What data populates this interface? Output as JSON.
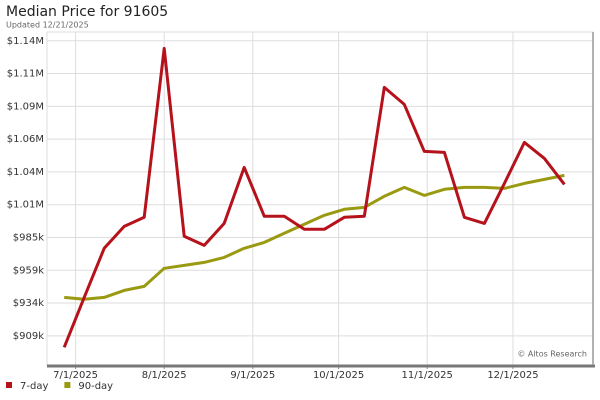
{
  "chart_data": {
    "type": "line",
    "title": "Median Price for 91605",
    "subtitle": "Updated 12/21/2025",
    "watermark": "© Altos Research",
    "x": [
      "2025-06-27",
      "2025-07-04",
      "2025-07-11",
      "2025-07-18",
      "2025-07-25",
      "2025-08-01",
      "2025-08-08",
      "2025-08-15",
      "2025-08-22",
      "2025-08-29",
      "2025-09-05",
      "2025-09-12",
      "2025-09-19",
      "2025-09-26",
      "2025-10-03",
      "2025-10-10",
      "2025-10-17",
      "2025-10-24",
      "2025-10-31",
      "2025-11-07",
      "2025-11-14",
      "2025-11-21",
      "2025-11-28",
      "2025-12-05",
      "2025-12-12",
      "2025-12-19"
    ],
    "series": [
      {
        "name": "7-day",
        "color": "#b5121b",
        "values": [
          899700,
          938400,
          976400,
          993400,
          1000400,
          1131300,
          985700,
          978700,
          995700,
          1039100,
          1001200,
          1001200,
          991100,
          991100,
          1000400,
          1001200,
          1101100,
          1087900,
          1051500,
          1050700,
          1000400,
          995700,
          1026700,
          1058500,
          1046100,
          1025900
        ]
      },
      {
        "name": "90-day",
        "color": "#9a9a12",
        "values": [
          938400,
          936900,
          938400,
          943800,
          946900,
          960900,
          963200,
          965500,
          969400,
          976400,
          981000,
          988000,
          995000,
          1002000,
          1006600,
          1008100,
          1016700,
          1023600,
          1017400,
          1022100,
          1023600,
          1023600,
          1022800,
          1026700,
          1029800,
          1032900
        ]
      }
    ],
    "xlim": [
      "2025-06-21",
      "2025-12-29"
    ],
    "xticks": [
      {
        "value": "2025-07-01",
        "label": "7/1/2025"
      },
      {
        "value": "2025-08-01",
        "label": "8/1/2025"
      },
      {
        "value": "2025-09-01",
        "label": "9/1/2025"
      },
      {
        "value": "2025-10-01",
        "label": "10/1/2025"
      },
      {
        "value": "2025-11-01",
        "label": "11/1/2025"
      },
      {
        "value": "2025-12-01",
        "label": "12/1/2025"
      }
    ],
    "ylim": [
      886000,
      1144000
    ],
    "yticks": [
      {
        "value": 908600,
        "label": "$909k"
      },
      {
        "value": 934000,
        "label": "$934k"
      },
      {
        "value": 959400,
        "label": "$959k"
      },
      {
        "value": 984800,
        "label": "$985k"
      },
      {
        "value": 1010200,
        "label": "$1.01M"
      },
      {
        "value": 1035600,
        "label": "$1.04M"
      },
      {
        "value": 1061000,
        "label": "$1.06M"
      },
      {
        "value": 1086400,
        "label": "$1.09M"
      },
      {
        "value": 1111800,
        "label": "$1.11M"
      },
      {
        "value": 1137200,
        "label": "$1.14M"
      }
    ],
    "grid": true
  }
}
